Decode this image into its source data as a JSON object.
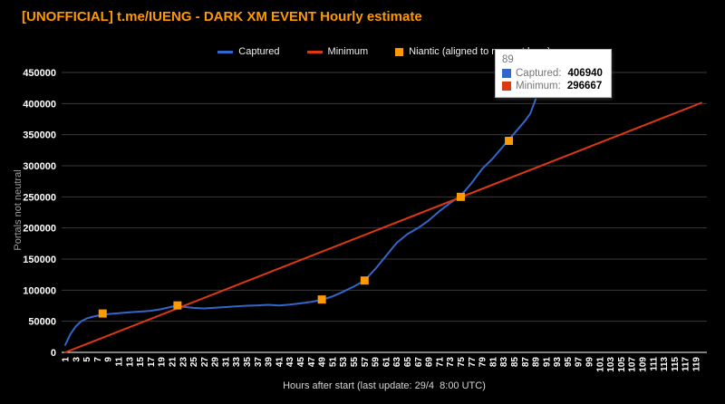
{
  "title": "[UNOFFICIAL] t.me/IUENG - DARK XM EVENT Hourly estimate",
  "colors": {
    "background": "#000000",
    "title": "#ff9900",
    "captured": "#3366cc",
    "minimum": "#dc3912",
    "niantic": "#ff9900",
    "grid": "#3a3a3a",
    "baseline": "#ffffff",
    "tick_label": "#ffffff",
    "axis_title": "#9e9e9e"
  },
  "legend": {
    "items": [
      {
        "label": "Captured",
        "color": "#3366cc",
        "swatch": "line"
      },
      {
        "label": "Minimum",
        "color": "#dc3912",
        "swatch": "line"
      },
      {
        "label": "Niantic (aligned to nearest hour)",
        "color": "#ff9900",
        "swatch": "square"
      }
    ]
  },
  "tooltip": {
    "header": "89",
    "rows": [
      {
        "label": "Captured:",
        "value": "406940",
        "color": "#3366cc"
      },
      {
        "label": "Minimum:",
        "value": "296667",
        "color": "#dc3912"
      }
    ]
  },
  "chart_data": {
    "type": "line",
    "title": "[UNOFFICIAL] t.me/IUENG - DARK XM EVENT Hourly estimate",
    "xlabel": "Hours after start (last update: 29/4  8:00 UTC)",
    "ylabel": "Portals not neutral",
    "xlim": [
      1,
      119
    ],
    "ylim": [
      0,
      450000
    ],
    "grid": "horizontal",
    "legend_position": "top",
    "x_ticks": [
      1,
      3,
      5,
      7,
      9,
      11,
      13,
      15,
      17,
      19,
      21,
      23,
      25,
      27,
      29,
      31,
      33,
      35,
      37,
      39,
      41,
      43,
      45,
      47,
      49,
      51,
      53,
      55,
      57,
      59,
      61,
      63,
      65,
      67,
      69,
      71,
      73,
      75,
      77,
      79,
      81,
      83,
      85,
      87,
      89,
      91,
      93,
      95,
      97,
      99,
      101,
      103,
      105,
      107,
      109,
      111,
      113,
      115,
      117,
      119
    ],
    "y_ticks": [
      0,
      50000,
      100000,
      150000,
      200000,
      250000,
      300000,
      350000,
      400000,
      450000
    ],
    "series": [
      {
        "name": "Captured",
        "type": "line",
        "color": "#3366cc",
        "points": [
          [
            1,
            12000
          ],
          [
            2,
            30000
          ],
          [
            3,
            42000
          ],
          [
            4,
            50000
          ],
          [
            5,
            54500
          ],
          [
            6,
            57000
          ],
          [
            7,
            59000
          ],
          [
            8,
            60500
          ],
          [
            9,
            61500
          ],
          [
            11,
            63000
          ],
          [
            13,
            64500
          ],
          [
            15,
            65500
          ],
          [
            17,
            66800
          ],
          [
            19,
            69500
          ],
          [
            21,
            73500
          ],
          [
            22,
            75500
          ],
          [
            23,
            73200
          ],
          [
            25,
            71500
          ],
          [
            27,
            70700
          ],
          [
            29,
            71800
          ],
          [
            31,
            72800
          ],
          [
            33,
            74000
          ],
          [
            35,
            75000
          ],
          [
            37,
            75500
          ],
          [
            39,
            76500
          ],
          [
            41,
            75400
          ],
          [
            43,
            76800
          ],
          [
            45,
            78800
          ],
          [
            47,
            81200
          ],
          [
            49,
            84300
          ],
          [
            51,
            90000
          ],
          [
            53,
            97500
          ],
          [
            55,
            106000
          ],
          [
            57,
            115500
          ],
          [
            59,
            134000
          ],
          [
            61,
            155000
          ],
          [
            63,
            176000
          ],
          [
            65,
            190000
          ],
          [
            67,
            200000
          ],
          [
            69,
            212000
          ],
          [
            71,
            227000
          ],
          [
            73,
            240000
          ],
          [
            75,
            252000
          ],
          [
            77,
            272000
          ],
          [
            79,
            295000
          ],
          [
            81,
            312000
          ],
          [
            83,
            332000
          ],
          [
            84,
            342000
          ],
          [
            85,
            352000
          ],
          [
            86,
            362000
          ],
          [
            87,
            372000
          ],
          [
            88,
            384000
          ],
          [
            89,
            406940
          ]
        ]
      },
      {
        "name": "Minimum",
        "type": "line",
        "color": "#dc3912",
        "points": [
          [
            1,
            0
          ],
          [
            89,
            296667
          ],
          [
            120,
            401214
          ]
        ]
      },
      {
        "name": "Niantic (aligned to nearest hour)",
        "type": "points",
        "color": "#ff9900",
        "points": [
          [
            8,
            62500
          ],
          [
            22,
            75500
          ],
          [
            49,
            85000
          ],
          [
            57,
            115500
          ],
          [
            75,
            250000
          ],
          [
            84,
            340000
          ]
        ]
      }
    ]
  }
}
